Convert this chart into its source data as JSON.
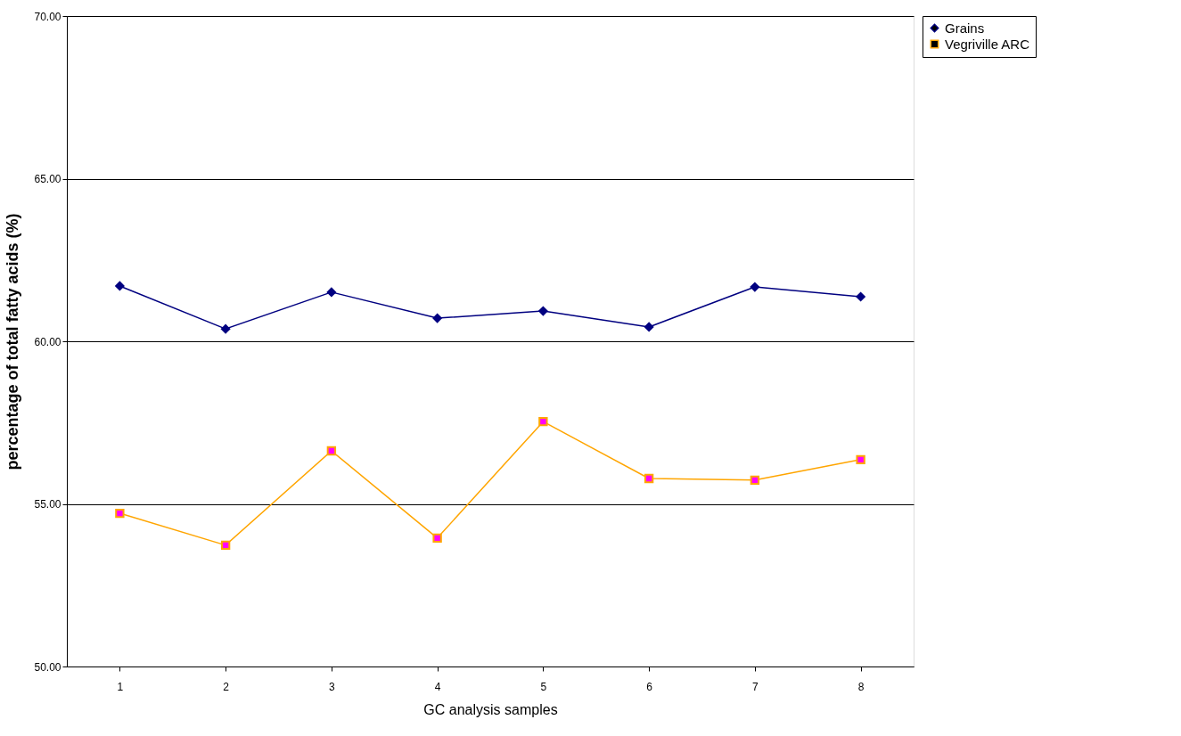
{
  "chart_data": {
    "type": "line",
    "xlabel": "GC analysis samples",
    "ylabel": "percentage of total fatty acids (%)",
    "categories": [
      "1",
      "2",
      "3",
      "4",
      "5",
      "6",
      "7",
      "8"
    ],
    "series": [
      {
        "name": "Grains",
        "color": "#000080",
        "values": [
          61.7,
          60.38,
          61.51,
          60.71,
          60.93,
          60.44,
          61.67,
          61.37
        ]
      },
      {
        "name": "Vegriville ARC",
        "color": "#ffa500",
        "colors": [
          "#ff00ff",
          "#ff00ff",
          "#ff00ff",
          "#ff00ff",
          "#ff00ff",
          "#ff00ff",
          "#ff00ff",
          "#ff00ff"
        ],
        "values": [
          54.71,
          53.73,
          56.63,
          53.95,
          57.53,
          55.78,
          55.73,
          56.36
        ]
      }
    ],
    "ylim": [
      50,
      70
    ],
    "yticks": [
      {
        "value": 50,
        "label": "50.00"
      },
      {
        "value": 55,
        "label": "55.00"
      },
      {
        "value": 60,
        "label": "60.00"
      },
      {
        "value": 65,
        "label": "65.00"
      },
      {
        "value": 70,
        "label": "70.00"
      }
    ],
    "grid": "y",
    "legend": "right",
    "marker": [
      "diamond",
      "square"
    ]
  }
}
